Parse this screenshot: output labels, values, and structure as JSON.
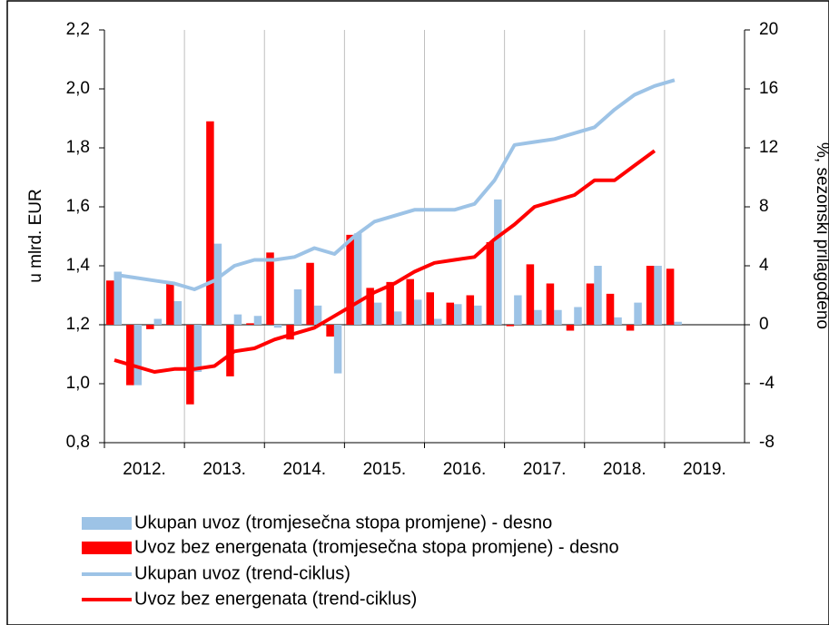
{
  "chart_data": {
    "type": "bar_line",
    "categories": [
      "2012.",
      "2013.",
      "2014.",
      "2015.",
      "2016.",
      "2017.",
      "2018.",
      "2019."
    ],
    "ylabel": "u mlrd. EUR",
    "y2label": "%, sezonski prilagođeno",
    "ylim": [
      0.8,
      2.2
    ],
    "yticks": [
      {
        "value": 0.8,
        "label": "0,8"
      },
      {
        "value": 1.0,
        "label": "1,0"
      },
      {
        "value": 1.2,
        "label": "1,2"
      },
      {
        "value": 1.4,
        "label": "1,4"
      },
      {
        "value": 1.6,
        "label": "1,6"
      },
      {
        "value": 1.8,
        "label": "1,8"
      },
      {
        "value": 2.0,
        "label": "2,0"
      },
      {
        "value": 2.2,
        "label": "2,2"
      }
    ],
    "y2lim": [
      -8,
      20
    ],
    "y2ticks": [
      -8,
      -4,
      0,
      4,
      8,
      12,
      16,
      20
    ],
    "xgrid": true,
    "series": [
      {
        "name": "Ukupan uvoz (tromjesečna stopa promjene) - desno",
        "type": "bar",
        "axis": "y2",
        "color": "#9dc3e6",
        "values": [
          [
            3.6,
            -4.1,
            0.4,
            1.6
          ],
          [
            -3.2,
            5.5,
            0.7,
            0.6
          ],
          [
            -0.2,
            2.4,
            1.3,
            -3.3
          ],
          [
            6.2,
            1.5,
            0.9,
            1.7
          ],
          [
            0.4,
            1.4,
            1.3,
            8.5
          ],
          [
            2.0,
            1.0,
            1.0,
            1.2
          ],
          [
            4.0,
            0.5,
            1.5,
            4.0
          ],
          [
            0.2,
            null,
            null,
            null
          ]
        ]
      },
      {
        "name": "Uvoz bez energenata (tromjesečna stopa promjene) - desno",
        "type": "bar",
        "axis": "y2",
        "color": "#ff0000",
        "values": [
          [
            3.0,
            -4.1,
            -0.3,
            2.8
          ],
          [
            -5.4,
            13.8,
            -3.5,
            0.1
          ],
          [
            4.9,
            -1.0,
            4.2,
            -0.8
          ],
          [
            6.1,
            2.5,
            2.9,
            3.1
          ],
          [
            2.2,
            1.5,
            2.0,
            5.6
          ],
          [
            -0.1,
            4.1,
            2.8,
            -0.4
          ],
          [
            2.8,
            2.1,
            -0.4,
            4.0
          ],
          [
            3.8,
            null,
            null,
            null
          ]
        ]
      },
      {
        "name": "Ukupan uvoz (trend-ciklus)",
        "type": "line",
        "axis": "y",
        "color": "#9dc3e6",
        "values": [
          [
            1.37,
            1.36,
            1.35,
            1.34
          ],
          [
            1.32,
            1.35,
            1.4,
            1.42
          ],
          [
            1.42,
            1.43,
            1.46,
            1.44
          ],
          [
            1.5,
            1.55,
            1.57,
            1.59
          ],
          [
            1.59,
            1.59,
            1.61,
            1.69
          ],
          [
            1.81,
            1.82,
            1.83,
            1.85
          ],
          [
            1.87,
            1.93,
            1.98,
            2.01
          ],
          [
            2.03,
            null,
            null,
            null
          ]
        ]
      },
      {
        "name": "Uvoz bez energenata (trend-ciklus)",
        "type": "line",
        "axis": "y",
        "color": "#ff0000",
        "values": [
          [
            1.08,
            1.06,
            1.04,
            1.05
          ],
          [
            1.05,
            1.06,
            1.11,
            1.12
          ],
          [
            1.15,
            1.17,
            1.19,
            1.23
          ],
          [
            1.27,
            1.31,
            1.34,
            1.38
          ],
          [
            1.41,
            1.42,
            1.43,
            1.49
          ],
          [
            1.54,
            1.6,
            1.62,
            1.64
          ],
          [
            1.69,
            1.69,
            1.74,
            1.79
          ],
          [
            null,
            null,
            null,
            null
          ]
        ]
      }
    ]
  }
}
